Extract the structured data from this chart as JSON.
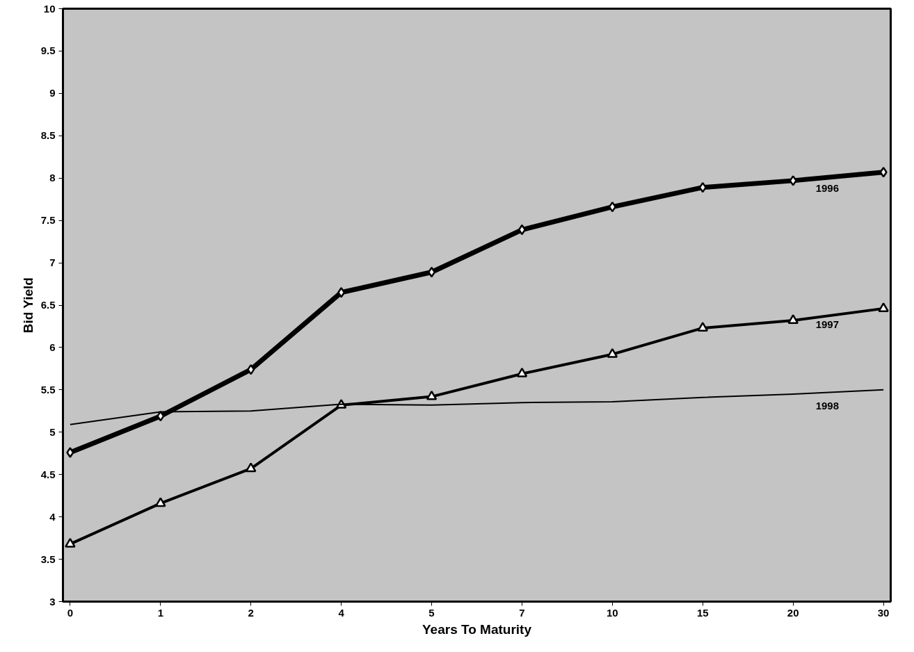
{
  "chart_data": {
    "type": "line",
    "xlabel": "Years To Maturity",
    "ylabel": "Bid Yield",
    "categories": [
      "0",
      "1",
      "2",
      "4",
      "5",
      "7",
      "10",
      "15",
      "20",
      "30"
    ],
    "series": [
      {
        "name": "1996",
        "color": "#000000",
        "marker": "diamond",
        "values": [
          4.76,
          5.19,
          5.74,
          6.65,
          6.89,
          7.39,
          7.66,
          7.89,
          7.97,
          8.07
        ]
      },
      {
        "name": "1997",
        "color": "#000000",
        "marker": "triangle",
        "values": [
          3.68,
          4.16,
          4.57,
          5.32,
          5.42,
          5.69,
          5.92,
          6.23,
          6.32,
          6.46
        ]
      },
      {
        "name": "1998",
        "color": "#000000",
        "marker": "none",
        "values": [
          5.09,
          5.24,
          5.25,
          5.33,
          5.32,
          5.35,
          5.36,
          5.41,
          5.45,
          5.5
        ]
      }
    ],
    "ylim": [
      3,
      10
    ],
    "yticks": [
      3,
      3.5,
      4,
      4.5,
      5,
      5.5,
      6,
      6.5,
      7,
      7.5,
      8,
      8.5,
      9,
      9.5,
      10
    ],
    "grid": false
  }
}
